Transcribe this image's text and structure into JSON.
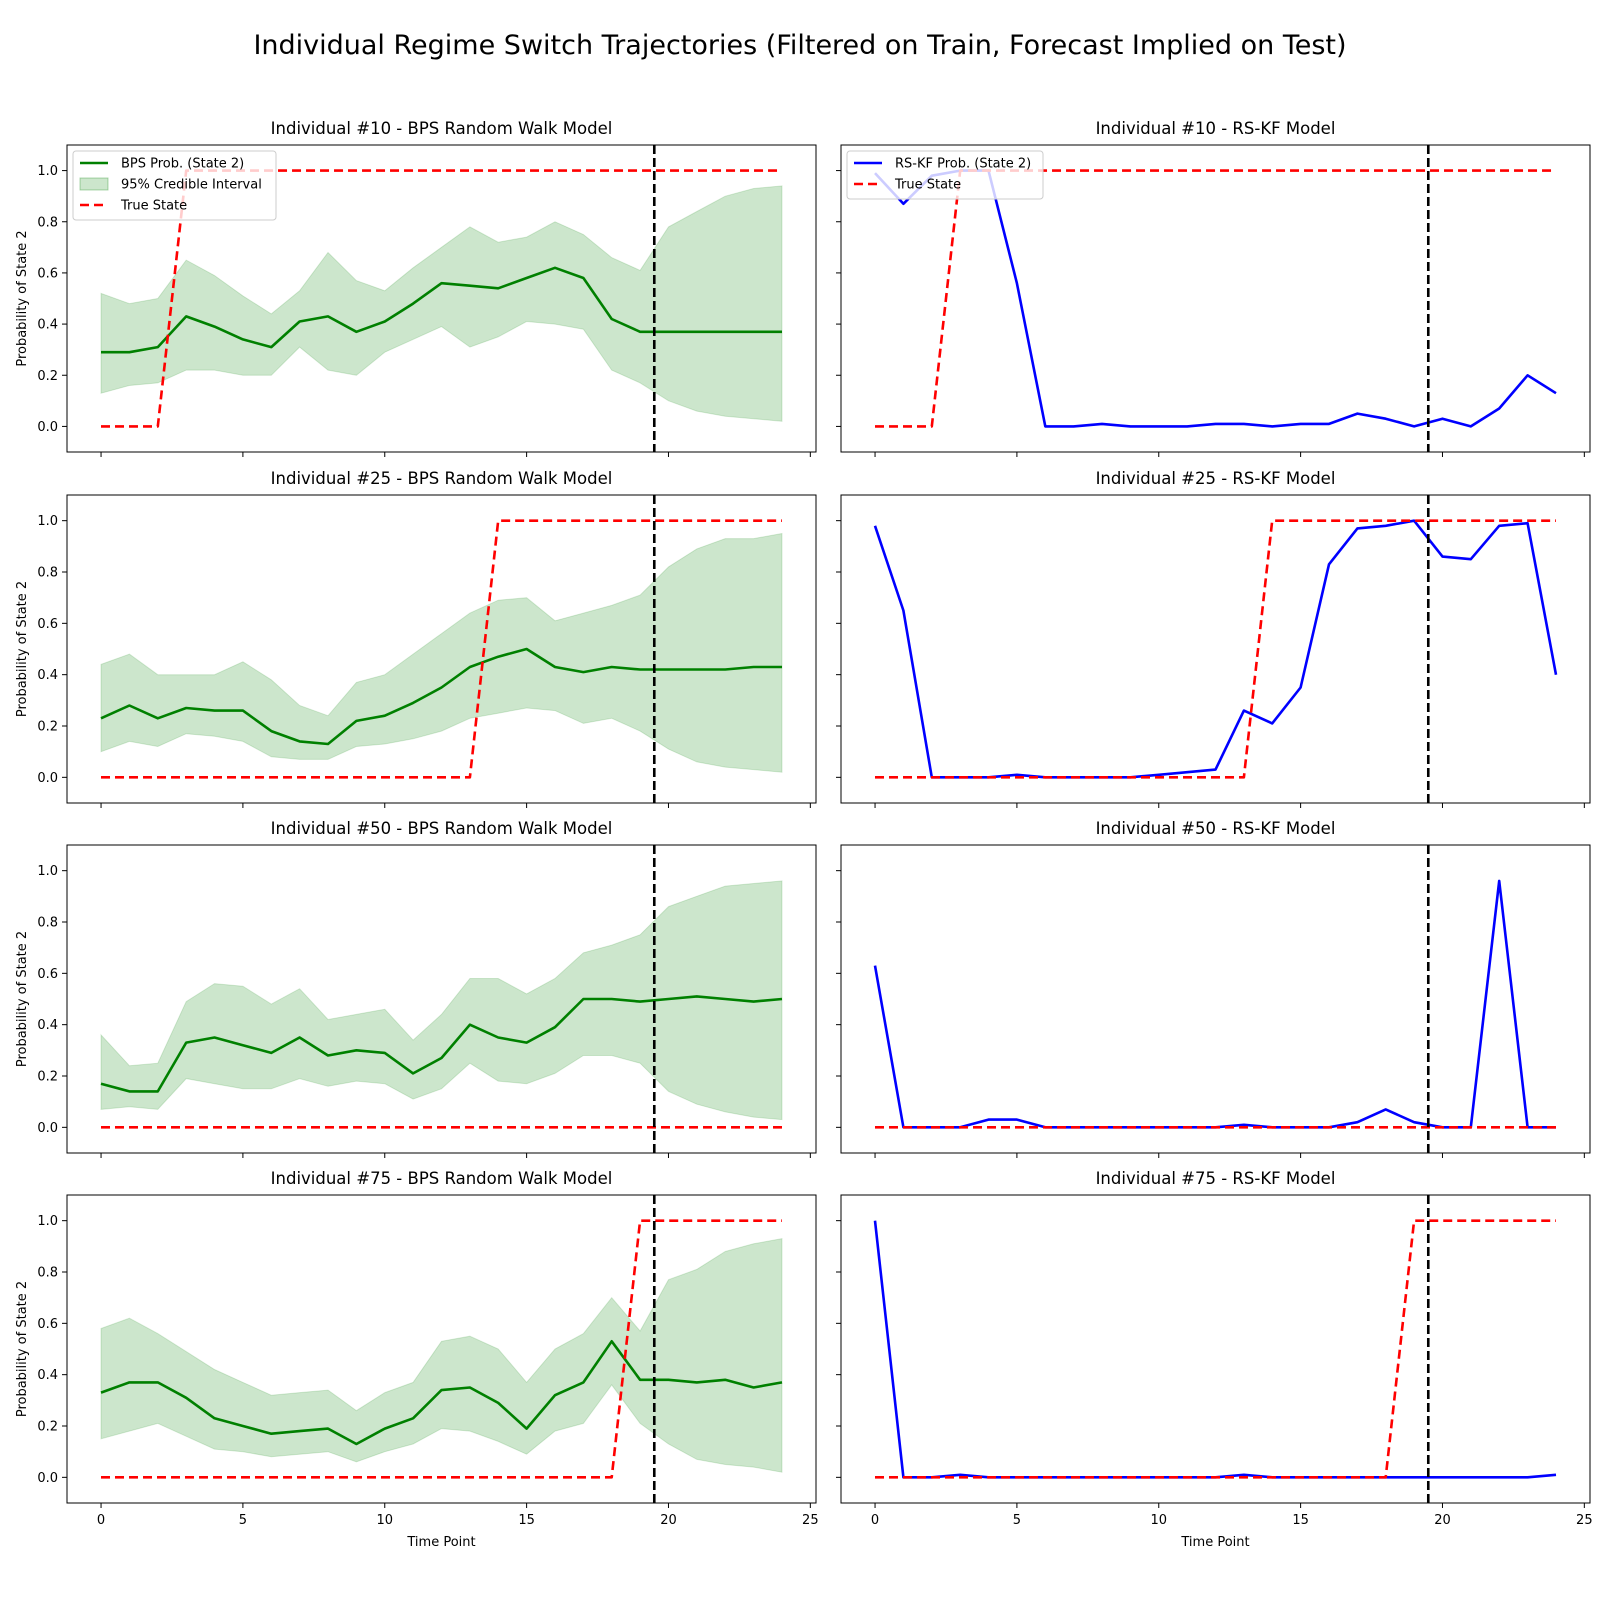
{
  "figure": {
    "title": "Individual Regime Switch Trajectories (Filtered on Train, Forecast Implied on Test)"
  },
  "axes_common": {
    "xlabel": "Time Point",
    "ylabel": "Probability of State 2",
    "xlim": [
      -1.2,
      25.2
    ],
    "ylim": [
      -0.1,
      1.1
    ],
    "xticks": [
      0,
      5,
      10,
      15,
      20,
      25
    ],
    "yticks": [
      0.0,
      0.2,
      0.4,
      0.6,
      0.8,
      1.0
    ],
    "ytick_labels": [
      "0.0",
      "0.2",
      "0.4",
      "0.6",
      "0.8",
      "1.0"
    ],
    "train_test_split": 19.5
  },
  "colors": {
    "bps_line": "#008000",
    "ci_fill": "#008000",
    "ci_fill_opacity": 0.2,
    "rskf_line": "#0000ff",
    "true_state": "#ff0000",
    "split_line": "#000000"
  },
  "legends": {
    "bps": [
      {
        "label": "BPS Prob. (State 2)",
        "kind": "line",
        "color": "#008000"
      },
      {
        "label": "95% Credible Interval",
        "kind": "patch",
        "color": "#008000"
      },
      {
        "label": "True State",
        "kind": "dashed",
        "color": "#ff0000"
      }
    ],
    "rskf": [
      {
        "label": "RS-KF Prob. (State 2)",
        "kind": "line",
        "color": "#0000ff"
      },
      {
        "label": "True State",
        "kind": "dashed",
        "color": "#ff0000"
      }
    ],
    "placement": "upper-left"
  },
  "chart_data": [
    {
      "type": "line",
      "title": "Individual #10 - BPS Random Walk Model",
      "model": "bps",
      "row": 0,
      "col": 0,
      "x": [
        0,
        1,
        2,
        3,
        4,
        5,
        6,
        7,
        8,
        9,
        10,
        11,
        12,
        13,
        14,
        15,
        16,
        17,
        18,
        19,
        20,
        21,
        22,
        23,
        24
      ],
      "series": [
        {
          "name": "BPS Prob. (State 2)",
          "values": [
            0.29,
            0.29,
            0.31,
            0.43,
            0.39,
            0.34,
            0.31,
            0.41,
            0.43,
            0.37,
            0.41,
            0.48,
            0.56,
            0.55,
            0.54,
            0.58,
            0.62,
            0.58,
            0.42,
            0.37,
            0.37,
            0.37,
            0.37,
            0.37,
            0.37
          ]
        },
        {
          "name": "95% Credible Interval",
          "lower": [
            0.13,
            0.16,
            0.17,
            0.22,
            0.22,
            0.2,
            0.2,
            0.31,
            0.22,
            0.2,
            0.29,
            0.34,
            0.39,
            0.31,
            0.35,
            0.41,
            0.4,
            0.38,
            0.22,
            0.17,
            0.1,
            0.06,
            0.04,
            0.03,
            0.02
          ],
          "upper": [
            0.52,
            0.48,
            0.5,
            0.65,
            0.59,
            0.51,
            0.44,
            0.53,
            0.68,
            0.57,
            0.53,
            0.62,
            0.7,
            0.78,
            0.72,
            0.74,
            0.8,
            0.75,
            0.66,
            0.61,
            0.78,
            0.84,
            0.9,
            0.93,
            0.94
          ]
        },
        {
          "name": "True State",
          "values": [
            0,
            0,
            0,
            1,
            1,
            1,
            1,
            1,
            1,
            1,
            1,
            1,
            1,
            1,
            1,
            1,
            1,
            1,
            1,
            1,
            1,
            1,
            1,
            1,
            1
          ]
        }
      ]
    },
    {
      "type": "line",
      "title": "Individual #10 - RS-KF Model",
      "model": "rskf",
      "row": 0,
      "col": 1,
      "x": [
        0,
        1,
        2,
        3,
        4,
        5,
        6,
        7,
        8,
        9,
        10,
        11,
        12,
        13,
        14,
        15,
        16,
        17,
        18,
        19,
        20,
        21,
        22,
        23,
        24
      ],
      "series": [
        {
          "name": "RS-KF Prob. (State 2)",
          "values": [
            0.99,
            0.87,
            0.98,
            1.0,
            1.0,
            0.56,
            0.0,
            0.0,
            0.01,
            0.0,
            0.0,
            0.0,
            0.01,
            0.01,
            0.0,
            0.01,
            0.01,
            0.05,
            0.03,
            0.0,
            0.03,
            0.0,
            0.07,
            0.2,
            0.13
          ]
        },
        {
          "name": "True State",
          "values": [
            0,
            0,
            0,
            1,
            1,
            1,
            1,
            1,
            1,
            1,
            1,
            1,
            1,
            1,
            1,
            1,
            1,
            1,
            1,
            1,
            1,
            1,
            1,
            1,
            1
          ]
        }
      ]
    },
    {
      "type": "line",
      "title": "Individual #25 - BPS Random Walk Model",
      "model": "bps",
      "row": 1,
      "col": 0,
      "x": [
        0,
        1,
        2,
        3,
        4,
        5,
        6,
        7,
        8,
        9,
        10,
        11,
        12,
        13,
        14,
        15,
        16,
        17,
        18,
        19,
        20,
        21,
        22,
        23,
        24
      ],
      "series": [
        {
          "name": "BPS Prob. (State 2)",
          "values": [
            0.23,
            0.28,
            0.23,
            0.27,
            0.26,
            0.26,
            0.18,
            0.14,
            0.13,
            0.22,
            0.24,
            0.29,
            0.35,
            0.43,
            0.47,
            0.5,
            0.43,
            0.41,
            0.43,
            0.42,
            0.42,
            0.42,
            0.42,
            0.43,
            0.43
          ]
        },
        {
          "name": "95% Credible Interval",
          "lower": [
            0.1,
            0.14,
            0.12,
            0.17,
            0.16,
            0.14,
            0.08,
            0.07,
            0.07,
            0.12,
            0.13,
            0.15,
            0.18,
            0.23,
            0.25,
            0.27,
            0.26,
            0.21,
            0.23,
            0.18,
            0.11,
            0.06,
            0.04,
            0.03,
            0.02
          ],
          "upper": [
            0.44,
            0.48,
            0.4,
            0.4,
            0.4,
            0.45,
            0.38,
            0.28,
            0.24,
            0.37,
            0.4,
            0.48,
            0.56,
            0.64,
            0.69,
            0.7,
            0.61,
            0.64,
            0.67,
            0.71,
            0.82,
            0.89,
            0.93,
            0.93,
            0.95
          ]
        },
        {
          "name": "True State",
          "values": [
            0,
            0,
            0,
            0,
            0,
            0,
            0,
            0,
            0,
            0,
            0,
            0,
            0,
            0,
            1,
            1,
            1,
            1,
            1,
            1,
            1,
            1,
            1,
            1,
            1
          ]
        }
      ]
    },
    {
      "type": "line",
      "title": "Individual #25 - RS-KF Model",
      "model": "rskf",
      "row": 1,
      "col": 1,
      "x": [
        0,
        1,
        2,
        3,
        4,
        5,
        6,
        7,
        8,
        9,
        10,
        11,
        12,
        13,
        14,
        15,
        16,
        17,
        18,
        19,
        20,
        21,
        22,
        23,
        24
      ],
      "series": [
        {
          "name": "RS-KF Prob. (State 2)",
          "values": [
            0.98,
            0.65,
            0.0,
            0.0,
            0.0,
            0.01,
            0.0,
            0.0,
            0.0,
            0.0,
            0.01,
            0.02,
            0.03,
            0.26,
            0.21,
            0.35,
            0.83,
            0.97,
            0.98,
            1.0,
            0.86,
            0.85,
            0.98,
            0.99,
            0.4
          ]
        },
        {
          "name": "True State",
          "values": [
            0,
            0,
            0,
            0,
            0,
            0,
            0,
            0,
            0,
            0,
            0,
            0,
            0,
            0,
            1,
            1,
            1,
            1,
            1,
            1,
            1,
            1,
            1,
            1,
            1
          ]
        }
      ]
    },
    {
      "type": "line",
      "title": "Individual #50 - BPS Random Walk Model",
      "model": "bps",
      "row": 2,
      "col": 0,
      "x": [
        0,
        1,
        2,
        3,
        4,
        5,
        6,
        7,
        8,
        9,
        10,
        11,
        12,
        13,
        14,
        15,
        16,
        17,
        18,
        19,
        20,
        21,
        22,
        23,
        24
      ],
      "series": [
        {
          "name": "BPS Prob. (State 2)",
          "values": [
            0.17,
            0.14,
            0.14,
            0.33,
            0.35,
            0.32,
            0.29,
            0.35,
            0.28,
            0.3,
            0.29,
            0.21,
            0.27,
            0.4,
            0.35,
            0.33,
            0.39,
            0.5,
            0.5,
            0.49,
            0.5,
            0.51,
            0.5,
            0.49,
            0.5
          ]
        },
        {
          "name": "95% Credible Interval",
          "lower": [
            0.07,
            0.08,
            0.07,
            0.19,
            0.17,
            0.15,
            0.15,
            0.19,
            0.16,
            0.18,
            0.17,
            0.11,
            0.15,
            0.25,
            0.18,
            0.17,
            0.21,
            0.28,
            0.28,
            0.25,
            0.14,
            0.09,
            0.06,
            0.04,
            0.03
          ],
          "upper": [
            0.36,
            0.24,
            0.25,
            0.49,
            0.56,
            0.55,
            0.48,
            0.54,
            0.42,
            0.44,
            0.46,
            0.34,
            0.44,
            0.58,
            0.58,
            0.52,
            0.58,
            0.68,
            0.71,
            0.75,
            0.86,
            0.9,
            0.94,
            0.95,
            0.96
          ]
        },
        {
          "name": "True State",
          "values": [
            0,
            0,
            0,
            0,
            0,
            0,
            0,
            0,
            0,
            0,
            0,
            0,
            0,
            0,
            0,
            0,
            0,
            0,
            0,
            0,
            0,
            0,
            0,
            0,
            0
          ]
        }
      ]
    },
    {
      "type": "line",
      "title": "Individual #50 - RS-KF Model",
      "model": "rskf",
      "row": 2,
      "col": 1,
      "x": [
        0,
        1,
        2,
        3,
        4,
        5,
        6,
        7,
        8,
        9,
        10,
        11,
        12,
        13,
        14,
        15,
        16,
        17,
        18,
        19,
        20,
        21,
        22,
        23,
        24
      ],
      "series": [
        {
          "name": "RS-KF Prob. (State 2)",
          "values": [
            0.63,
            0.0,
            0.0,
            0.0,
            0.03,
            0.03,
            0.0,
            0.0,
            0.0,
            0.0,
            0.0,
            0.0,
            0.0,
            0.01,
            0.0,
            0.0,
            0.0,
            0.02,
            0.07,
            0.02,
            0.0,
            0.0,
            0.96,
            0.0,
            0.0
          ]
        },
        {
          "name": "True State",
          "values": [
            0,
            0,
            0,
            0,
            0,
            0,
            0,
            0,
            0,
            0,
            0,
            0,
            0,
            0,
            0,
            0,
            0,
            0,
            0,
            0,
            0,
            0,
            0,
            0,
            0
          ]
        }
      ]
    },
    {
      "type": "line",
      "title": "Individual #75 - BPS Random Walk Model",
      "model": "bps",
      "row": 3,
      "col": 0,
      "x": [
        0,
        1,
        2,
        3,
        4,
        5,
        6,
        7,
        8,
        9,
        10,
        11,
        12,
        13,
        14,
        15,
        16,
        17,
        18,
        19,
        20,
        21,
        22,
        23,
        24
      ],
      "series": [
        {
          "name": "BPS Prob. (State 2)",
          "values": [
            0.33,
            0.37,
            0.37,
            0.31,
            0.23,
            0.2,
            0.17,
            0.18,
            0.19,
            0.13,
            0.19,
            0.23,
            0.34,
            0.35,
            0.29,
            0.19,
            0.32,
            0.37,
            0.53,
            0.38,
            0.38,
            0.37,
            0.38,
            0.35,
            0.37
          ]
        },
        {
          "name": "95% Credible Interval",
          "lower": [
            0.15,
            0.18,
            0.21,
            0.16,
            0.11,
            0.1,
            0.08,
            0.09,
            0.1,
            0.06,
            0.1,
            0.13,
            0.19,
            0.18,
            0.14,
            0.09,
            0.18,
            0.21,
            0.36,
            0.21,
            0.13,
            0.07,
            0.05,
            0.04,
            0.02
          ],
          "upper": [
            0.58,
            0.62,
            0.56,
            0.49,
            0.42,
            0.37,
            0.32,
            0.33,
            0.34,
            0.26,
            0.33,
            0.37,
            0.53,
            0.55,
            0.5,
            0.37,
            0.5,
            0.56,
            0.7,
            0.57,
            0.77,
            0.81,
            0.88,
            0.91,
            0.93
          ]
        },
        {
          "name": "True State",
          "values": [
            0,
            0,
            0,
            0,
            0,
            0,
            0,
            0,
            0,
            0,
            0,
            0,
            0,
            0,
            0,
            0,
            0,
            0,
            0,
            1,
            1,
            1,
            1,
            1,
            1
          ]
        }
      ]
    },
    {
      "type": "line",
      "title": "Individual #75 - RS-KF Model",
      "model": "rskf",
      "row": 3,
      "col": 1,
      "x": [
        0,
        1,
        2,
        3,
        4,
        5,
        6,
        7,
        8,
        9,
        10,
        11,
        12,
        13,
        14,
        15,
        16,
        17,
        18,
        19,
        20,
        21,
        22,
        23,
        24
      ],
      "series": [
        {
          "name": "RS-KF Prob. (State 2)",
          "values": [
            1.0,
            0.0,
            0.0,
            0.01,
            0.0,
            0.0,
            0.0,
            0.0,
            0.0,
            0.0,
            0.0,
            0.0,
            0.0,
            0.01,
            0.0,
            0.0,
            0.0,
            0.0,
            0.0,
            0.0,
            0.0,
            0.0,
            0.0,
            0.0,
            0.01
          ]
        },
        {
          "name": "True State",
          "values": [
            0,
            0,
            0,
            0,
            0,
            0,
            0,
            0,
            0,
            0,
            0,
            0,
            0,
            0,
            0,
            0,
            0,
            0,
            0,
            1,
            1,
            1,
            1,
            1,
            1
          ]
        }
      ]
    }
  ]
}
